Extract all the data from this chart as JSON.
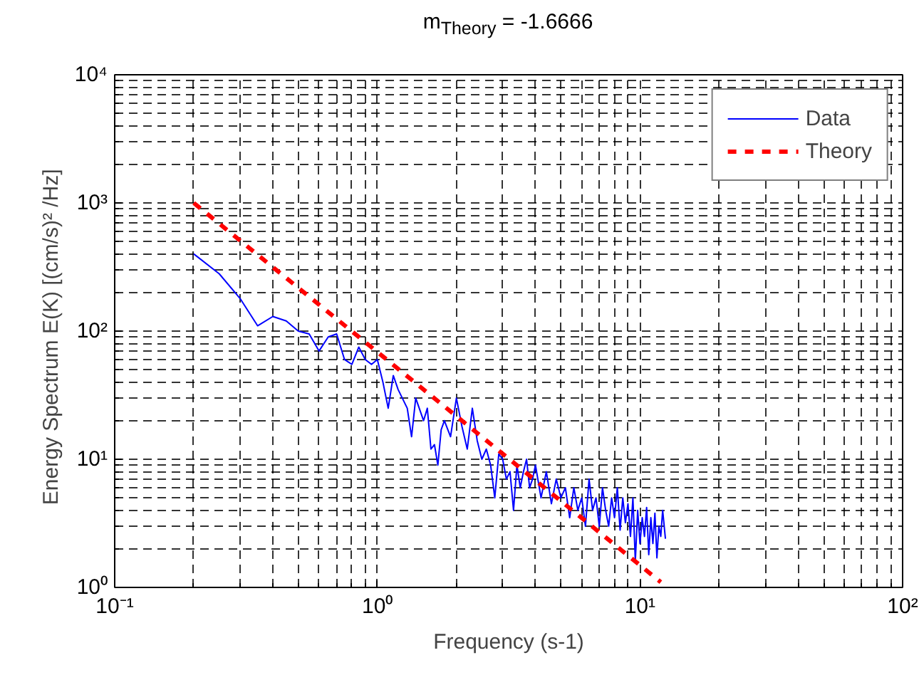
{
  "chart_data": {
    "type": "line",
    "title": "m$_{Theory}$ = -1.6666",
    "xlabel": "Frequency (s-1)",
    "ylabel": "Energy Spectrum  E(K)  [(cm/s)² /Hz]",
    "log": "xy",
    "grid": true,
    "legend": "top right",
    "line_style": "solid",
    "xlim": [
      0.1,
      100
    ],
    "ylim": [
      1,
      10000
    ],
    "xticks": [
      {
        "value": 0.1,
        "label": "10⁻¹"
      },
      {
        "value": 1,
        "label": "10⁰"
      },
      {
        "value": 10,
        "label": "10¹"
      },
      {
        "value": 100,
        "label": "10²"
      }
    ],
    "yticks": [
      {
        "value": 1,
        "label": "10⁰"
      },
      {
        "value": 10,
        "label": "10¹"
      },
      {
        "value": 100,
        "label": "10²"
      },
      {
        "value": 1000,
        "label": "10³"
      },
      {
        "value": 10000,
        "label": "10⁴"
      }
    ],
    "series": [
      {
        "name": "Data",
        "color": "#0000ff",
        "x": [
          0.2,
          0.25,
          0.3,
          0.35,
          0.4,
          0.45,
          0.5,
          0.55,
          0.6,
          0.65,
          0.7,
          0.75,
          0.8,
          0.85,
          0.9,
          0.95,
          1.0,
          1.05,
          1.1,
          1.15,
          1.2,
          1.3,
          1.35,
          1.4,
          1.5,
          1.55,
          1.6,
          1.65,
          1.7,
          1.75,
          1.8,
          1.9,
          2.0,
          2.1,
          2.2,
          2.3,
          2.4,
          2.5,
          2.6,
          2.7,
          2.8,
          2.9,
          3.0,
          3.1,
          3.2,
          3.3,
          3.4,
          3.5,
          3.6,
          3.7,
          3.8,
          3.9,
          4.0,
          4.2,
          4.4,
          4.6,
          4.8,
          5.0,
          5.2,
          5.4,
          5.6,
          5.8,
          6.0,
          6.2,
          6.4,
          6.6,
          6.8,
          7.0,
          7.2,
          7.4,
          7.6,
          7.8,
          8.0,
          8.2,
          8.4,
          8.6,
          8.8,
          9.0,
          9.2,
          9.4,
          9.6,
          9.8,
          10.0,
          10.2,
          10.4,
          10.6,
          10.8,
          11.0,
          11.2,
          11.4,
          11.6,
          11.8,
          12.0,
          12.2,
          12.5
        ],
        "values": [
          400,
          280,
          180,
          110,
          130,
          120,
          100,
          95,
          70,
          90,
          95,
          60,
          55,
          75,
          60,
          55,
          60,
          40,
          25,
          45,
          35,
          25,
          15,
          30,
          20,
          25,
          12,
          13,
          9,
          17,
          20,
          15,
          30,
          18,
          12,
          25,
          14,
          10,
          12,
          9,
          5,
          11,
          10,
          7,
          8,
          4,
          9,
          6,
          8,
          10,
          6,
          7,
          9,
          5,
          8,
          4.5,
          7,
          5,
          6,
          3.5,
          6,
          4,
          5,
          3,
          7,
          4,
          5,
          3,
          6,
          4,
          3,
          5,
          3.5,
          6,
          2.8,
          5,
          3.2,
          4.5,
          2.5,
          5,
          1.6,
          4,
          2.2,
          3.5,
          2.5,
          4.2,
          1.8,
          3.5,
          2.2,
          3.8,
          1.7,
          3,
          2.5,
          4,
          2.4
        ]
      },
      {
        "name": "Theory",
        "color": "#ff0000",
        "line_style": "dashed",
        "x": [
          0.2,
          12
        ],
        "values": [
          1000,
          1.1
        ]
      }
    ]
  }
}
